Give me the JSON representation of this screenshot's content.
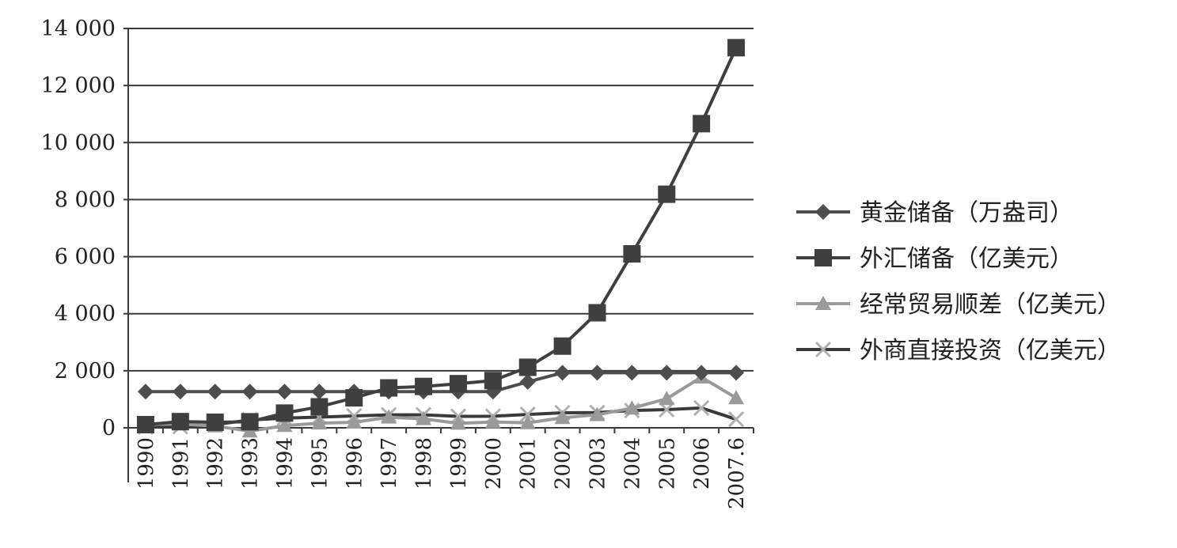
{
  "chart_data": {
    "type": "line",
    "categories": [
      "1990",
      "1991",
      "1992",
      "1993",
      "1994",
      "1995",
      "1996",
      "1997",
      "1998",
      "1999",
      "2000",
      "2001",
      "2002",
      "2003",
      "2004",
      "2005",
      "2006",
      "2007.6"
    ],
    "ylim": [
      0,
      14000
    ],
    "yticks": [
      0,
      2000,
      4000,
      6000,
      8000,
      10000,
      12000,
      14000
    ],
    "ytick_labels": [
      "0",
      "2 000",
      "4 000",
      "6 000",
      "8 000",
      "10 000",
      "12 000",
      "14 000"
    ],
    "grid": "horizontal",
    "legend_position": "right",
    "series": [
      {
        "name": "黄金储备（万盎司）",
        "marker": "diamond",
        "color": "#4d4d4d",
        "values": [
          1270,
          1270,
          1270,
          1270,
          1270,
          1270,
          1270,
          1270,
          1270,
          1270,
          1270,
          1610,
          1930,
          1930,
          1930,
          1930,
          1930,
          1930
        ]
      },
      {
        "name": "外汇储备（亿美元）",
        "marker": "square",
        "color": "#3f3f3f",
        "values": [
          111,
          217,
          194,
          212,
          516,
          736,
          1050,
          1399,
          1450,
          1547,
          1656,
          2122,
          2864,
          4033,
          6099,
          8189,
          10663,
          13326
        ]
      },
      {
        "name": "经常贸易顺差（亿美元）",
        "marker": "triangle",
        "color": "#9a9a9a",
        "values": [
          120,
          133,
          64,
          -119,
          77,
          162,
          195,
          370,
          315,
          157,
          205,
          174,
          354,
          459,
          687,
          1019,
          1775,
          1046
        ]
      },
      {
        "name": "外商直接投资（亿美元）",
        "marker": "x",
        "color": "#3a3a3a",
        "values": [
          35,
          44,
          110,
          275,
          338,
          375,
          417,
          453,
          455,
          403,
          407,
          468,
          527,
          535,
          606,
          638,
          695,
          300
        ]
      }
    ]
  }
}
